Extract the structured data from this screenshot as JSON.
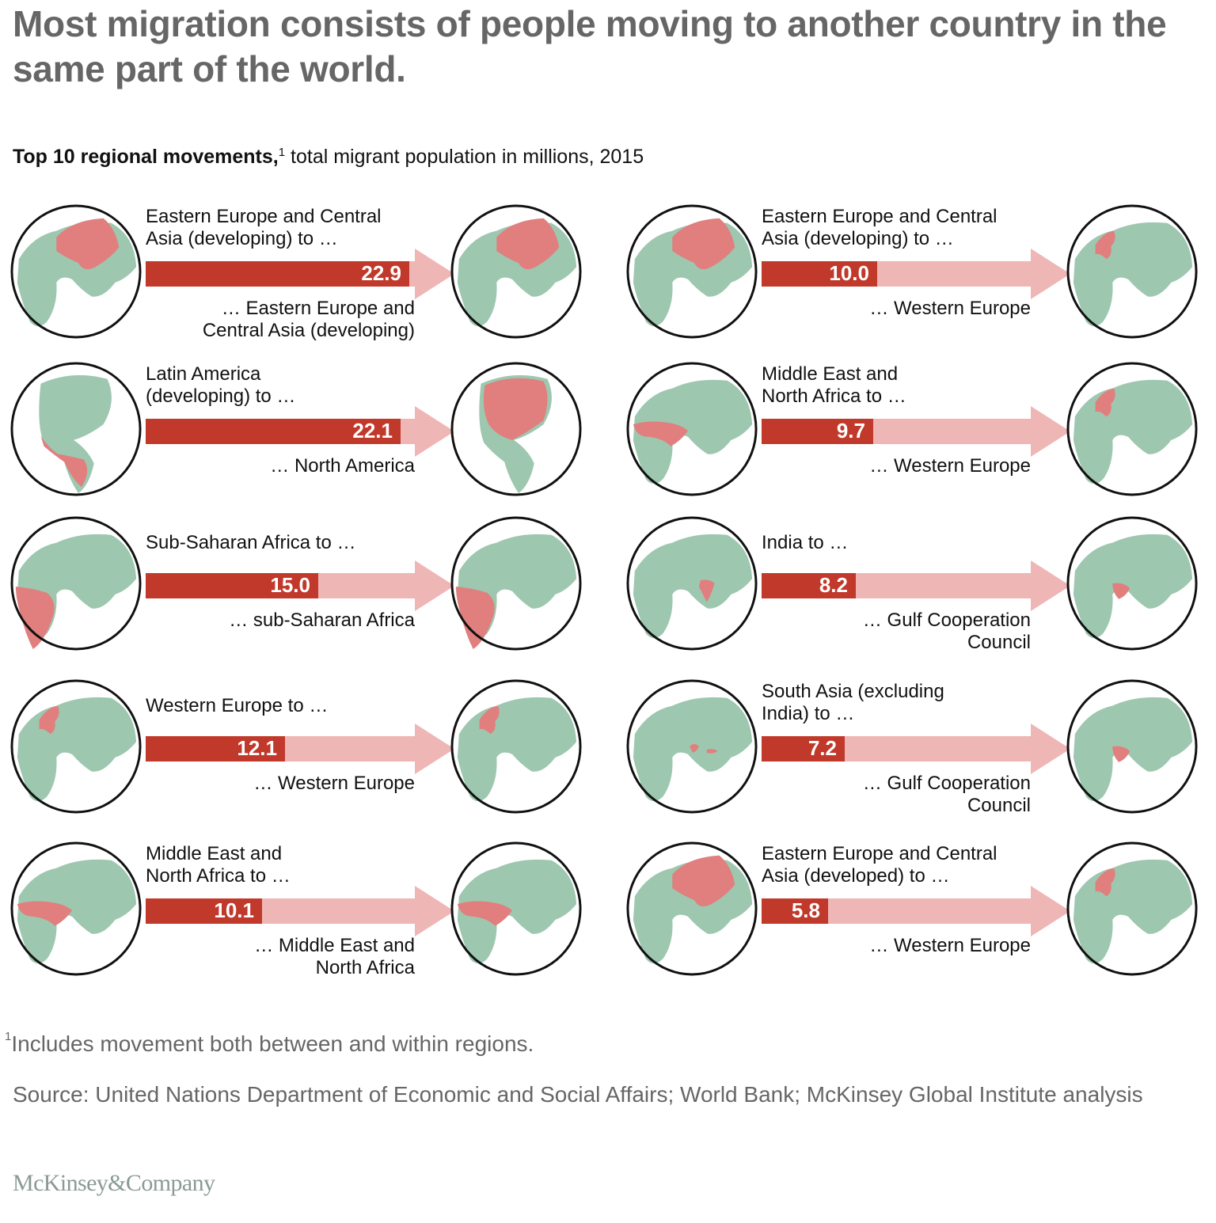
{
  "title": "Most migration consists of people moving to another country in the same part of the world.",
  "subtitle": {
    "bold": "Top 10 regional movements,",
    "sup": "1",
    "rest": " total migrant population in millions, 2015"
  },
  "colors": {
    "bar_value": "#c0392b",
    "arrow_remainder": "#efb6b6",
    "land": "#9ec7b0",
    "highlight": "#e07f7e",
    "globe_outline": "#111111",
    "title_text": "#666666"
  },
  "movements": [
    {
      "from": "Eastern Europe and Central\nAsia (developing) to …",
      "to": "… Eastern Europe and\nCentral Asia (developing)",
      "value": "22.9"
    },
    {
      "from": "Latin America\n(developing) to …",
      "to": "… North America",
      "value": "22.1"
    },
    {
      "from": "Sub-Saharan Africa to …",
      "to": "… sub-Saharan Africa",
      "value": "15.0"
    },
    {
      "from": "Western Europe to …",
      "to": "… Western Europe",
      "value": "12.1"
    },
    {
      "from": "Middle East and\nNorth Africa to …",
      "to": "… Middle East and\nNorth Africa",
      "value": "10.1"
    },
    {
      "from": "Eastern Europe and Central\nAsia (developing) to …",
      "to": "… Western Europe",
      "value": "10.0"
    },
    {
      "from": "Middle East and\nNorth Africa to …",
      "to": "… Western Europe",
      "value": "9.7"
    },
    {
      "from": "India to …",
      "to": "… Gulf Cooperation\nCouncil",
      "value": "8.2"
    },
    {
      "from": "South Asia (excluding\nIndia) to …",
      "to": "… Gulf Cooperation\nCouncil",
      "value": "7.2"
    },
    {
      "from": "Eastern Europe and Central\nAsia (developed) to …",
      "to": "… Western Europe",
      "value": "5.8"
    }
  ],
  "chart_data": {
    "type": "bar",
    "title": "Most migration consists of people moving to another country in the same part of the world.",
    "subtitle": "Top 10 regional movements, total migrant population in millions, 2015",
    "categories": [
      "Eastern Europe and Central Asia (developing) → Eastern Europe and Central Asia (developing)",
      "Latin America (developing) → North America",
      "Sub-Saharan Africa → sub-Saharan Africa",
      "Western Europe → Western Europe",
      "Middle East and North Africa → Middle East and North Africa",
      "Eastern Europe and Central Asia (developing) → Western Europe",
      "Middle East and North Africa → Western Europe",
      "India → Gulf Cooperation Council",
      "South Asia (excluding India) → Gulf Cooperation Council",
      "Eastern Europe and Central Asia (developed) → Western Europe"
    ],
    "values": [
      22.9,
      22.1,
      15.0,
      12.1,
      10.1,
      10.0,
      9.7,
      8.2,
      7.2,
      5.8
    ],
    "unit": "millions",
    "xlabel": "",
    "ylabel": "Total migrant population (millions)",
    "orientation": "horizontal",
    "grid": false,
    "legend": null
  },
  "footnote": {
    "marker": "1",
    "text": "Includes movement both between and within regions."
  },
  "source": "Source: United Nations Department of Economic and Social Affairs; World Bank; McKinsey Global Institute analysis",
  "logo": "McKinsey&Company"
}
